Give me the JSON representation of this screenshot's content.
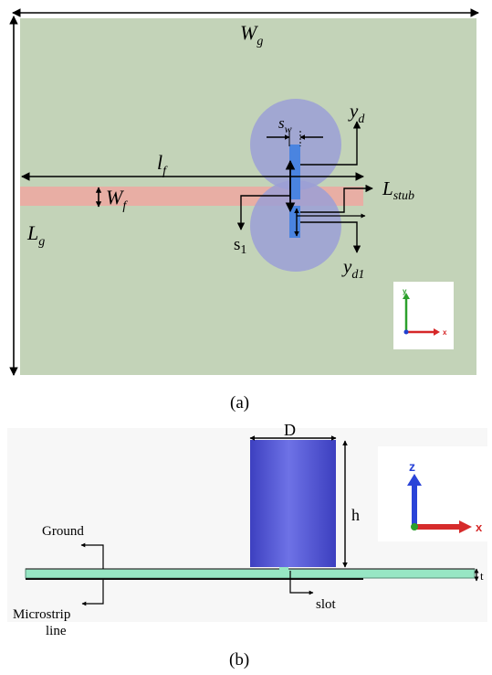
{
  "figure_a": {
    "caption": "(a)",
    "labels": {
      "wg": "W",
      "wg_sub": "g",
      "lg": "L",
      "lg_sub": "g",
      "lf": "l",
      "lf_sub": "f",
      "wf": "W",
      "wf_sub": "f",
      "sw": "s",
      "sw_sub": "w",
      "yd": "y",
      "yd_sub": "d",
      "yd1": "y",
      "yd1_sub": "d1",
      "lstub": "L",
      "lstub_sub": "stub",
      "s1": "s",
      "s1_sub": "1"
    },
    "axes": {
      "y": "y",
      "x": "x"
    },
    "colors": {
      "ground": "#c3d3b8",
      "feed": "#e8aea4",
      "dra": "#9b9fd6",
      "slot": "#4a84e0"
    }
  },
  "figure_b": {
    "caption": "(b)",
    "labels": {
      "d": "D",
      "h": "h",
      "t": "t",
      "ground": "Ground",
      "microstrip_1": "Microstrip",
      "microstrip_2": "line",
      "slot": "slot"
    },
    "axes": {
      "z": "z",
      "x": "x"
    },
    "colors": {
      "cylinder": "#5b5ed9",
      "substrate": "#97e6c4",
      "axis_z": "#2a44d8",
      "axis_x": "#d62b2b"
    }
  }
}
